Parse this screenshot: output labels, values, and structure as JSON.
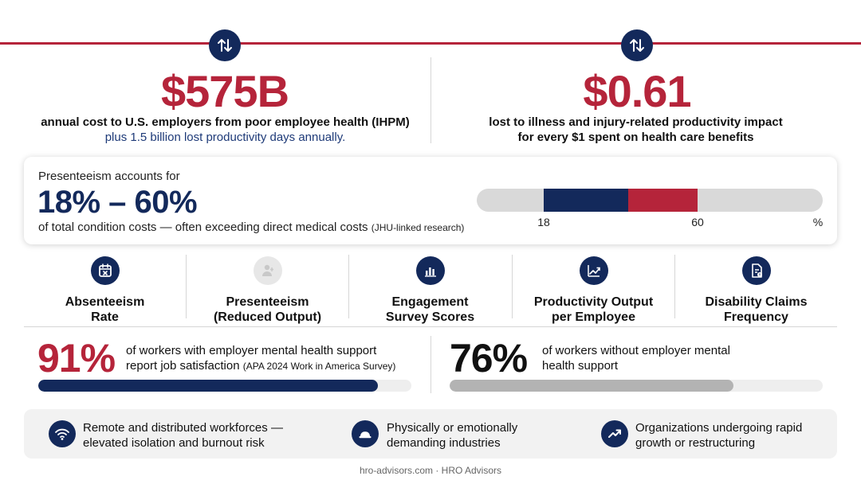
{
  "stats": [
    {
      "value": "$575B",
      "line1": "annual cost to U.S. employers from poor employee health (IHPM)",
      "line2": "plus 1.5 billion lost productivity days annually."
    },
    {
      "value": "$0.61",
      "line1": "lost to illness and injury-related productivity impact",
      "line2": "for every $1 spent on health care benefits"
    }
  ],
  "presenteeism": {
    "label": "Presenteeism accounts for",
    "range": "18% – 60%",
    "desc": "of total condition costs — often exceeding direct medical costs",
    "source": "(JHU-linked research)",
    "low_pct": 18,
    "high_pct": 60,
    "low_label": "18",
    "high_label": "60",
    "unit_label": "%",
    "colors": {
      "low": "#13295b",
      "high": "#b5243a",
      "track": "#d9d9d9"
    }
  },
  "metrics": [
    {
      "line1": "Absenteeism",
      "line2": "Rate",
      "icon": "calendar-x-icon"
    },
    {
      "line1": "Presenteeism",
      "line2": "(Reduced Output)",
      "icon": "person-muted-icon"
    },
    {
      "line1": "Engagement",
      "line2": "Survey Scores",
      "icon": "bar-chart-icon"
    },
    {
      "line1": "Productivity Output",
      "line2": "per Employee",
      "icon": "trend-chart-icon"
    },
    {
      "line1": "Disability Claims",
      "line2": "Frequency",
      "icon": "claims-document-icon"
    }
  ],
  "comparison": [
    {
      "value": "91%",
      "line1": "of workers with employer mental health support",
      "line2": "report job satisfaction",
      "source": "(APA 2024 Work in America Survey)",
      "fill_pct": 91,
      "color": "#b5243a",
      "bar_color": "#13295b"
    },
    {
      "value": "76%",
      "line1": "of workers without employer mental",
      "line2": "health support",
      "source": "",
      "fill_pct": 76,
      "color": "#111111",
      "bar_color": "#b3b3b3"
    }
  ],
  "risks": [
    {
      "line1": "Remote and distributed workforces —",
      "line2": "elevated isolation and burnout risk",
      "icon": "wifi-icon"
    },
    {
      "line1": "Physically or emotionally",
      "line2": "demanding industries",
      "icon": "hard-hat-icon"
    },
    {
      "line1": "Organizations undergoing rapid",
      "line2": "growth or restructuring",
      "icon": "trending-up-icon"
    }
  ],
  "footer": "hro-advisors.com · HRO Advisors",
  "colors": {
    "brand_red": "#b5243a",
    "brand_navy": "#13295b"
  }
}
